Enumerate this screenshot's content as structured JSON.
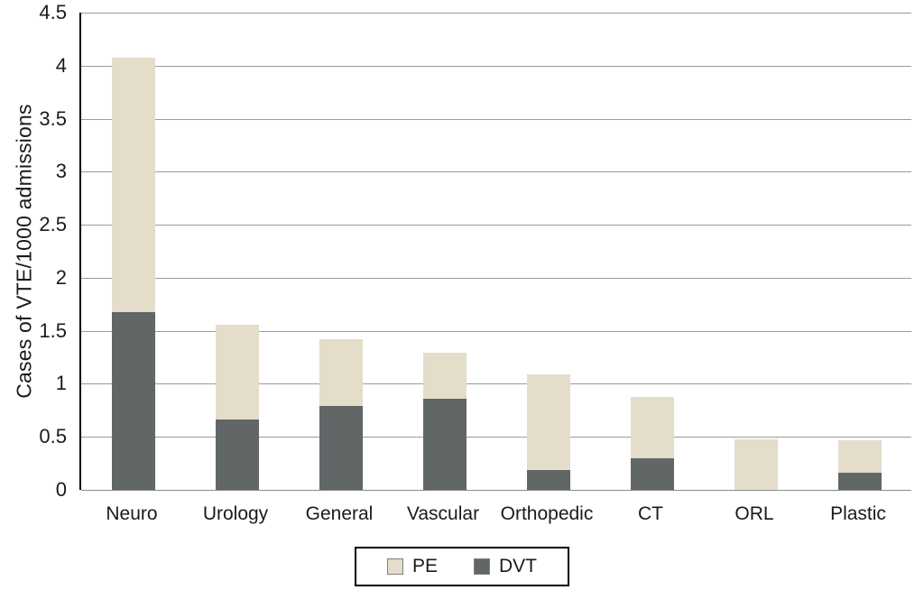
{
  "chart_data": {
    "type": "bar",
    "stacked": true,
    "title": "",
    "xlabel": "",
    "ylabel": "Cases of VTE/1000 admissions",
    "ylim": [
      0,
      4.5
    ],
    "ytick_step": 0.5,
    "grid": true,
    "categories": [
      "Neuro",
      "Urology",
      "General",
      "Vascular",
      "Orthopedic",
      "CT",
      "ORL",
      "Plastic"
    ],
    "series": [
      {
        "name": "DVT",
        "color": "#616667",
        "values": [
          1.68,
          0.66,
          0.79,
          0.86,
          0.19,
          0.3,
          0.0,
          0.16
        ]
      },
      {
        "name": "PE",
        "color": "#e3ddca",
        "values": [
          2.4,
          0.89,
          0.63,
          0.43,
          0.9,
          0.58,
          0.48,
          0.31
        ]
      }
    ],
    "legend_position": "bottom"
  },
  "legend": {
    "items": [
      {
        "label": "PE",
        "color": "#e3ddca"
      },
      {
        "label": "DVT",
        "color": "#616667"
      }
    ]
  }
}
